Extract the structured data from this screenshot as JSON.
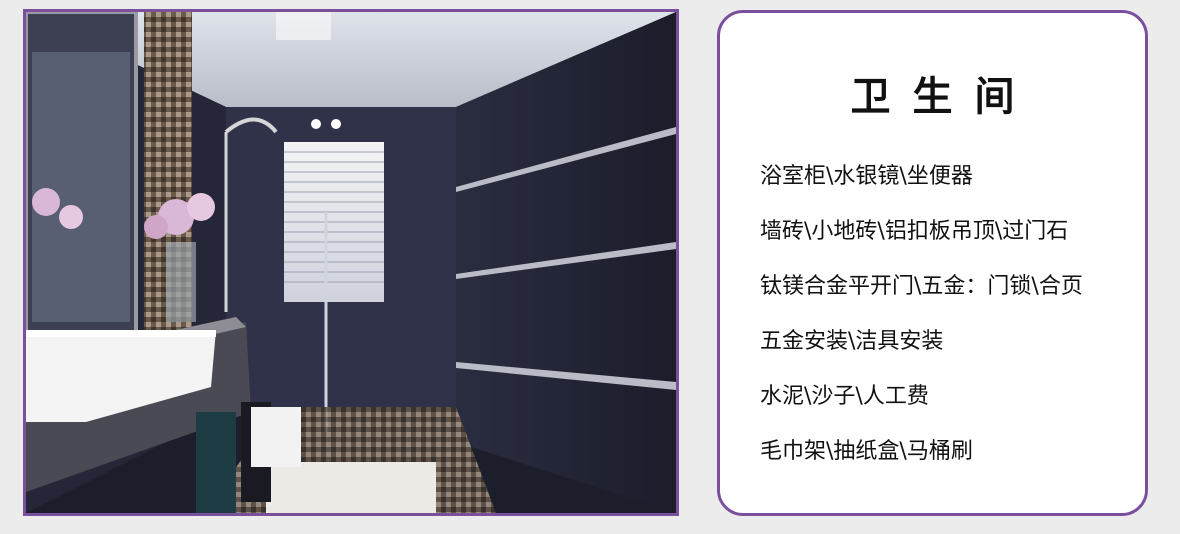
{
  "photo": {
    "subject": "bathroom-interior-photo"
  },
  "card": {
    "title": "卫生间",
    "items": [
      "浴室柜\\水银镜\\坐便器",
      "墙砖\\小地砖\\铝扣板吊顶\\过门石",
      "钛镁合金平开门\\五金：门锁\\合页",
      "五金安装\\洁具安装",
      "水泥\\沙子\\人工费",
      "毛巾架\\抽纸盒\\马桶刷"
    ]
  },
  "colors": {
    "frame_border": "#7a4f9c",
    "background": "#ececec",
    "card_background": "#ffffff",
    "text": "#111111"
  }
}
